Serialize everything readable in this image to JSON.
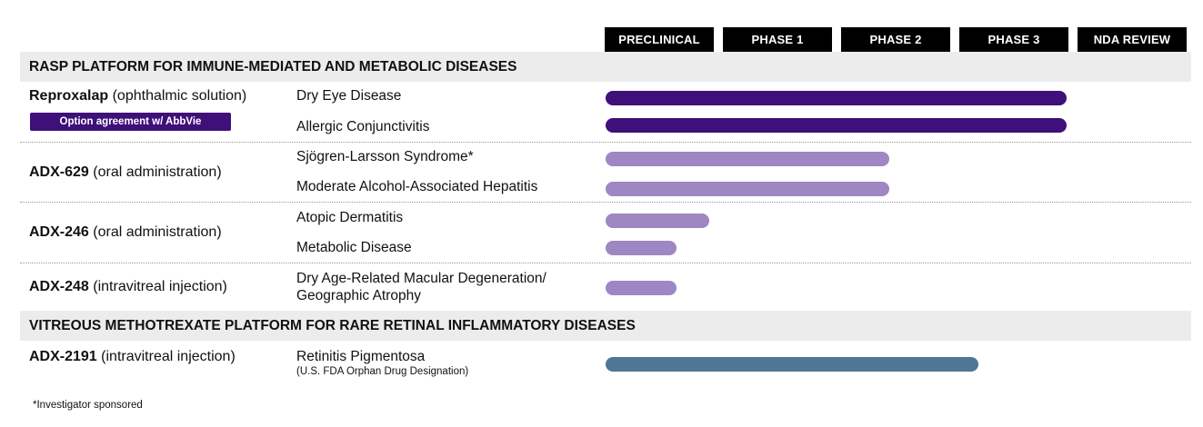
{
  "chart_data": {
    "type": "bar",
    "orientation": "horizontal",
    "title": "",
    "stages": [
      "PRECLINICAL",
      "PHASE 1",
      "PHASE 2",
      "PHASE 3",
      "NDA REVIEW"
    ],
    "xlim": [
      0,
      5
    ],
    "sections": [
      {
        "title": "RASP PLATFORM FOR IMMUNE-MEDIATED AND METABOLIC DISEASES",
        "programs": [
          {
            "name": "Reproxalap",
            "route": "(ophthalmic solution)",
            "badge": "Option agreement w/ AbbVie",
            "indications": [
              {
                "label": "Dry Eye Disease",
                "progress": 3.9,
                "color": "#3f0f7a"
              },
              {
                "label": "Allergic Conjunctivitis",
                "progress": 3.9,
                "color": "#3f0f7a"
              }
            ]
          },
          {
            "name": "ADX-629",
            "route": "(oral administration)",
            "indications": [
              {
                "label": "Sjögren-Larsson Syndrome*",
                "progress": 2.4,
                "color": "#9e87c2"
              },
              {
                "label": "Moderate Alcohol-Associated Hepatitis",
                "progress": 2.4,
                "color": "#9e87c2"
              }
            ]
          },
          {
            "name": "ADX-246",
            "route": "(oral administration)",
            "indications": [
              {
                "label": "Atopic Dermatitis",
                "progress": 0.88,
                "color": "#9e87c2"
              },
              {
                "label": "Metabolic Disease",
                "progress": 0.6,
                "color": "#9e87c2"
              }
            ]
          },
          {
            "name": "ADX-248",
            "route": "(intravitreal injection)",
            "indications": [
              {
                "label": "Dry Age-Related Macular Degeneration/",
                "label2": "Geographic Atrophy",
                "progress": 0.6,
                "color": "#9e87c2"
              }
            ]
          }
        ]
      },
      {
        "title": "VITREOUS METHOTREXATE PLATFORM FOR RARE RETINAL INFLAMMATORY DISEASES",
        "programs": [
          {
            "name": "ADX-2191",
            "route": "(intravitreal injection)",
            "indications": [
              {
                "label": "Retinitis Pigmentosa",
                "sublabel": "(U.S. FDA Orphan Drug Designation)",
                "progress": 3.15,
                "color": "#4f7696"
              }
            ]
          }
        ]
      }
    ]
  },
  "footnote": "*Investigator sponsored"
}
